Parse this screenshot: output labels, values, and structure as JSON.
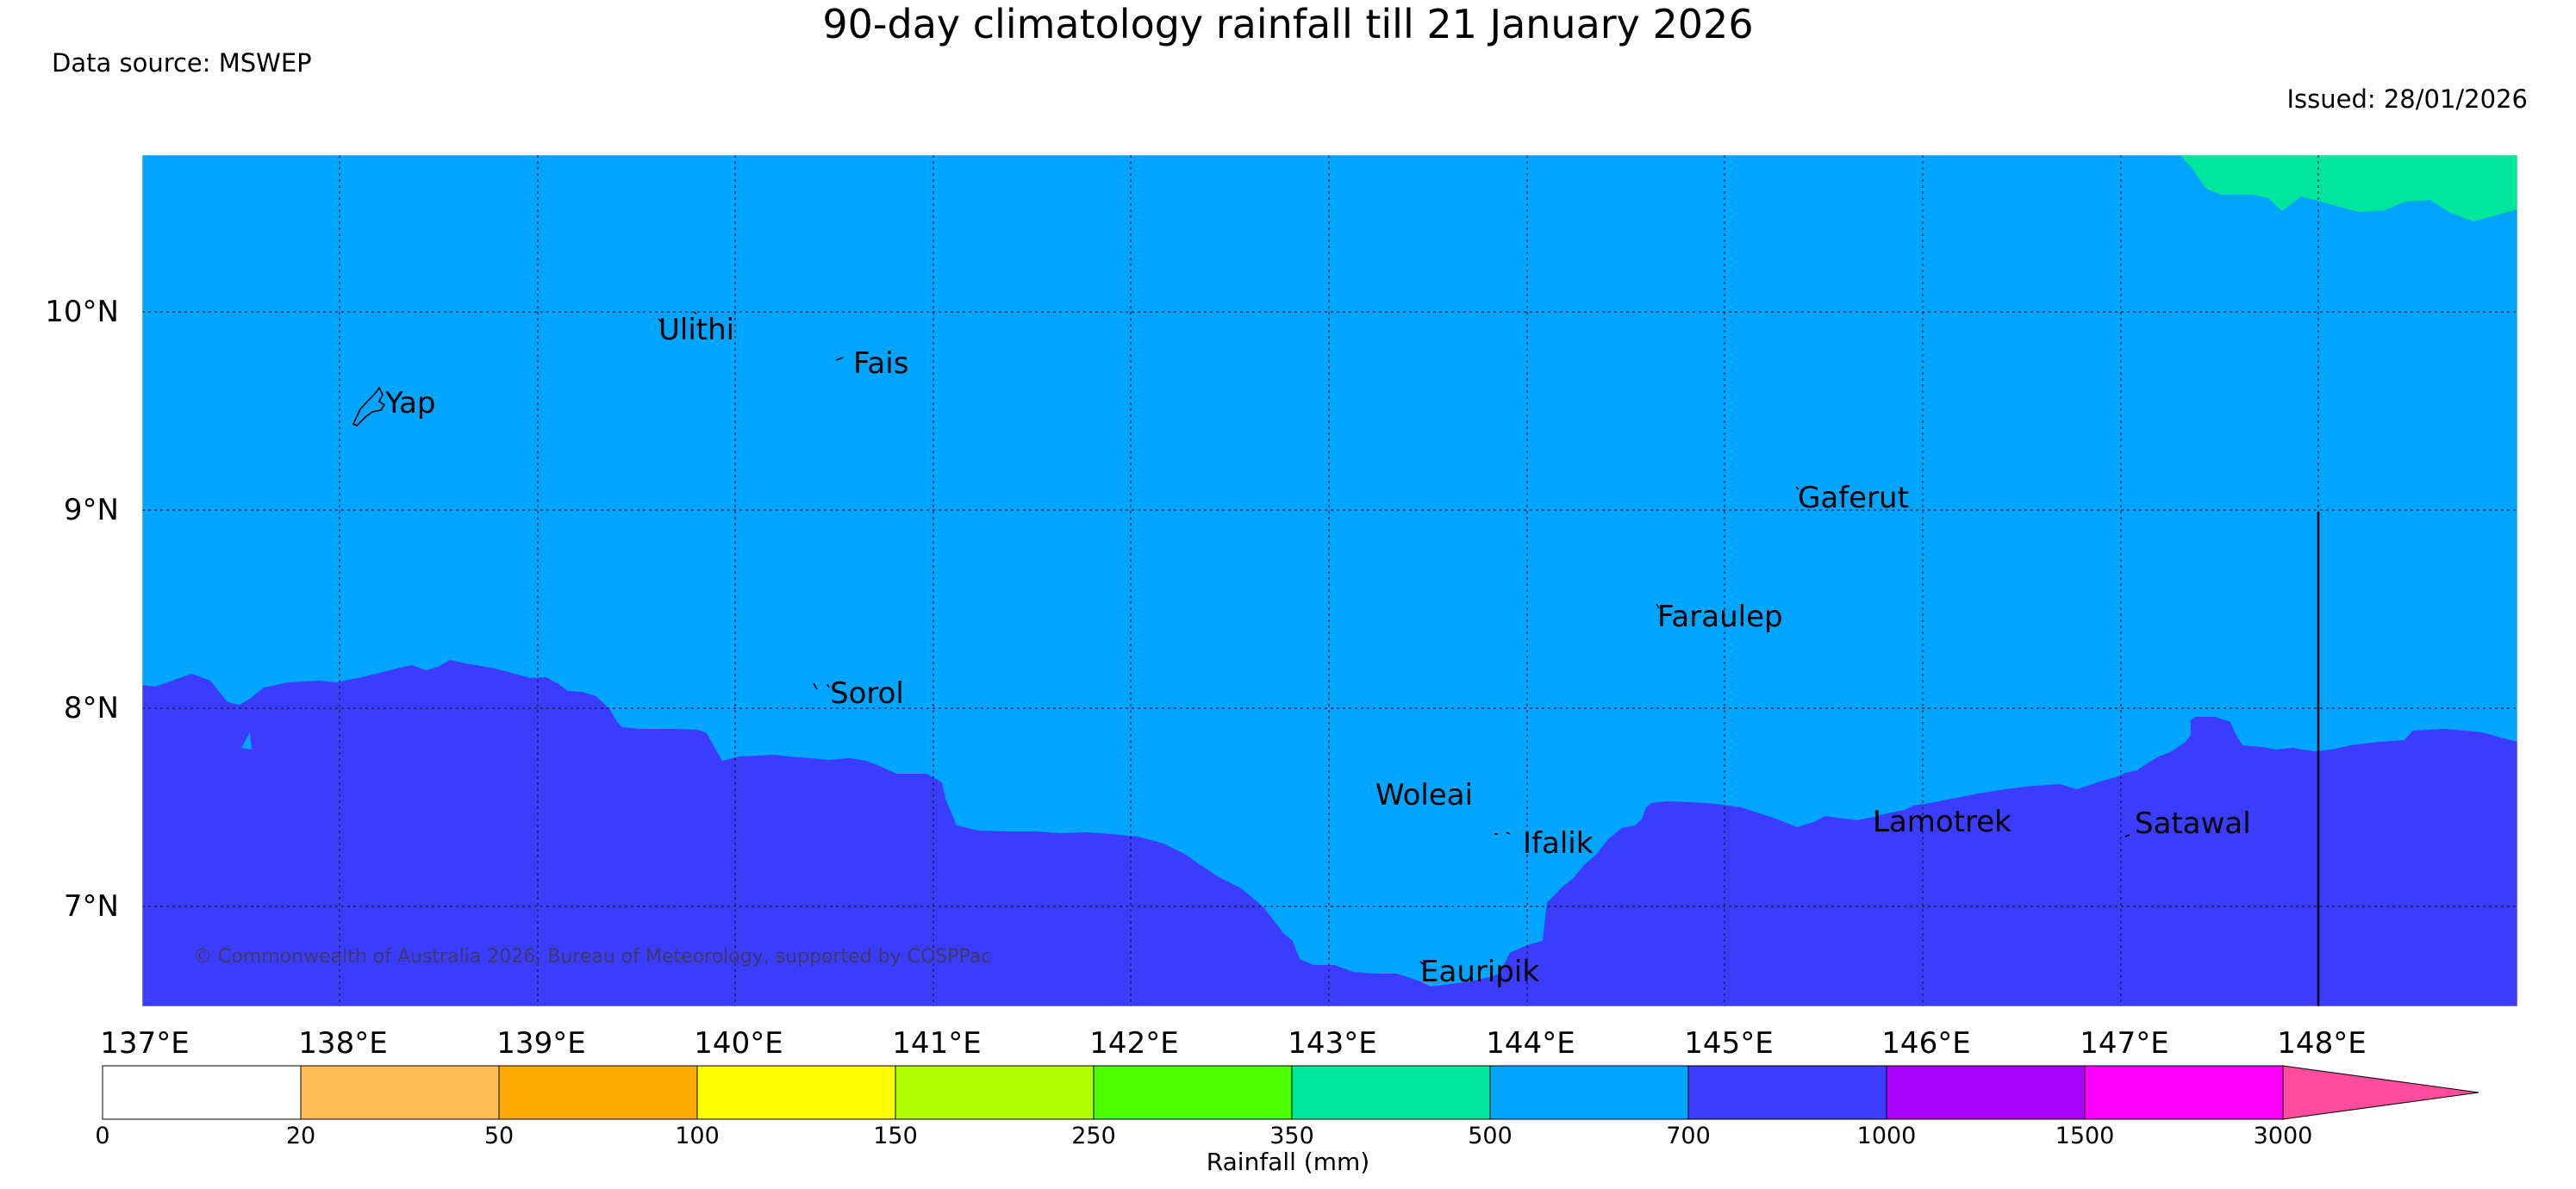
{
  "header": {
    "title": "90-day climatology rainfall till 21 January 2026",
    "data_source": "Data source: MSWEP",
    "issued": "Issued: 28/01/2026"
  },
  "map": {
    "lat_labels": [
      "10°N",
      "9°N",
      "8°N",
      "7°N"
    ],
    "lon_labels": [
      "137°E",
      "138°E",
      "139°E",
      "140°E",
      "141°E",
      "142°E",
      "143°E",
      "144°E",
      "145°E",
      "146°E",
      "147°E",
      "148°E"
    ],
    "places": [
      "Ulithi",
      "Fais",
      "Yap",
      "Gaferut",
      "Faraulep",
      "Sorol",
      "Woleai",
      "Ifalik",
      "Lamotrek",
      "Satawal",
      "Eauripik"
    ],
    "copyright": "© Commonwealth of Australia 2026, Bureau of Meteorology, supported by COSPPac",
    "region_colors": {
      "band_500_700": "#00a5ff",
      "band_700_1000": "#3c3cff",
      "band_350_500": "#00e69a"
    }
  },
  "colorbar": {
    "label": "Rainfall (mm)",
    "ticks": [
      "0",
      "20",
      "50",
      "100",
      "150",
      "250",
      "350",
      "500",
      "700",
      "1000",
      "1500",
      "3000"
    ],
    "colors": [
      "#ffffff",
      "#ffbd5a",
      "#ffaa00",
      "#ffff00",
      "#b2ff00",
      "#4cff00",
      "#00e69a",
      "#00a5ff",
      "#3c3cff",
      "#aa00ff",
      "#ff00ff",
      "#ff4c9e"
    ]
  }
}
